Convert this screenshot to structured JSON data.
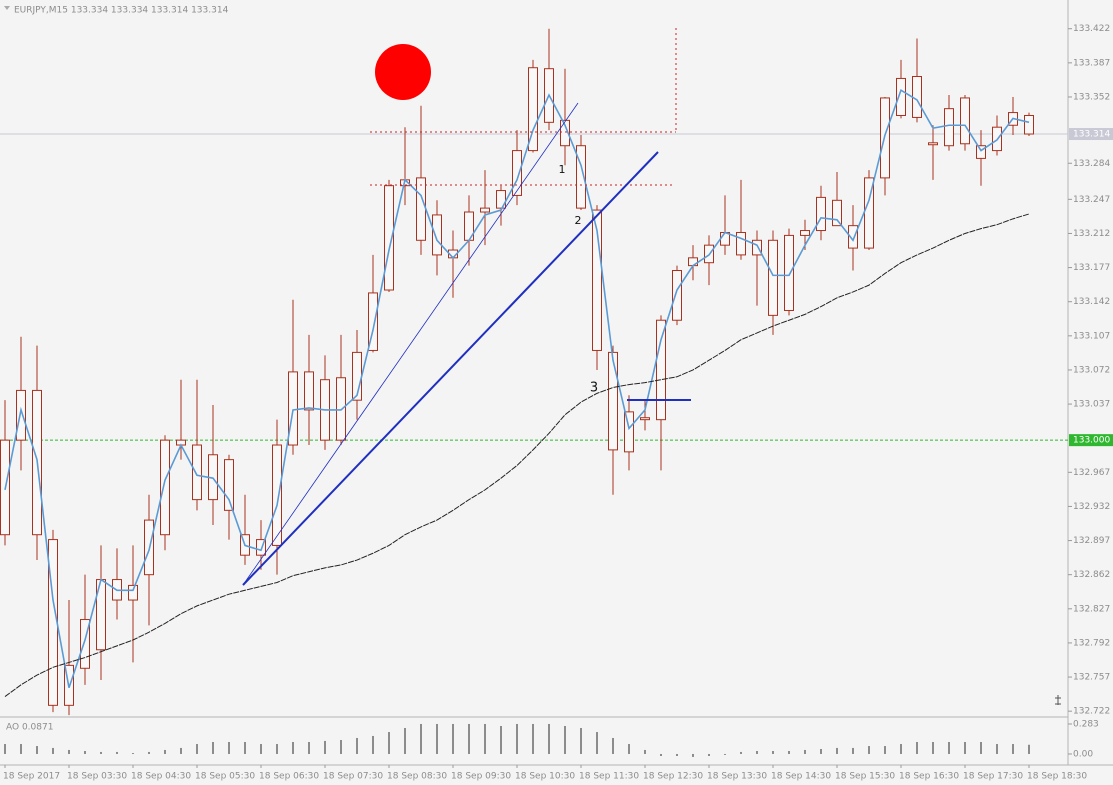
{
  "chart_data": [
    {
      "type": "candlestick",
      "title": "EURJPY,M15 133.334 133.334 133.314 133.314",
      "categories": [
        "18 Sep 2017",
        null,
        null,
        null,
        "18 Sep 03:30",
        null,
        null,
        null,
        "18 Sep 04:30",
        null,
        null,
        null,
        "18 Sep 05:30",
        null,
        null,
        null,
        "18 Sep 06:30",
        null,
        null,
        null,
        "18 Sep 07:30",
        null,
        null,
        null,
        "18 Sep 08:30",
        null,
        null,
        null,
        "18 Sep 09:30",
        null,
        null,
        null,
        "18 Sep 10:30",
        null,
        null,
        null,
        "18 Sep 11:30",
        null,
        null,
        null,
        "18 Sep 12:30",
        null,
        null,
        null,
        "18 Sep 13:30",
        null,
        null,
        null,
        "18 Sep 14:30",
        null,
        null,
        null,
        "18 Sep 15:30",
        null,
        null,
        null,
        "18 Sep 16:30",
        null,
        null,
        null,
        "18 Sep 17:30",
        null,
        null,
        null,
        "18 Sep 18:30"
      ],
      "open": [
        133.0,
        133.0,
        133.051,
        132.898,
        132.728,
        132.766,
        132.785,
        132.857,
        132.836,
        132.862,
        132.903,
        133.0,
        132.995,
        132.985,
        132.98,
        132.903,
        132.882,
        132.892,
        132.995,
        133.07,
        133.062,
        133.0,
        133.041,
        133.092,
        133.154,
        133.261,
        133.269,
        133.231,
        133.195,
        133.205,
        133.234,
        133.238,
        133.251,
        133.297,
        133.381,
        133.328,
        133.302,
        133.236,
        133.09,
        132.988,
        133.023,
        133.021,
        133.123,
        133.179,
        133.182,
        133.2,
        133.213,
        133.19,
        133.205,
        133.133,
        133.21,
        133.215,
        133.246,
        133.22,
        133.197,
        133.269,
        133.333,
        133.373,
        133.305,
        133.302,
        133.351,
        133.302,
        133.297,
        133.323,
        133.333
      ],
      "high": [
        133.041,
        133.106,
        133.097,
        132.908,
        132.836,
        132.862,
        132.892,
        132.889,
        132.892,
        132.944,
        133.005,
        133.062,
        133.062,
        133.036,
        132.985,
        132.944,
        132.918,
        133.021,
        133.144,
        133.108,
        133.087,
        133.108,
        133.113,
        133.19,
        133.267,
        133.321,
        133.343,
        133.246,
        133.215,
        133.251,
        133.277,
        133.261,
        133.318,
        133.39,
        133.422,
        133.381,
        133.313,
        133.241,
        133.097,
        133.046,
        133.041,
        133.128,
        133.179,
        133.2,
        133.21,
        133.251,
        133.267,
        133.215,
        133.215,
        133.217,
        133.226,
        133.261,
        133.275,
        133.241,
        133.277,
        133.352,
        133.39,
        133.412,
        133.323,
        133.354,
        133.354,
        133.318,
        133.333,
        133.352,
        133.336
      ],
      "low": [
        132.892,
        132.969,
        132.877,
        132.721,
        132.718,
        132.749,
        132.754,
        132.816,
        132.772,
        132.81,
        132.887,
        132.98,
        132.928,
        132.913,
        132.898,
        132.872,
        132.867,
        132.862,
        132.985,
        132.995,
        132.99,
        132.995,
        133.021,
        133.09,
        133.152,
        133.241,
        133.19,
        133.169,
        133.146,
        133.179,
        133.2,
        133.22,
        133.241,
        133.295,
        133.318,
        133.282,
        133.236,
        133.072,
        132.944,
        132.969,
        133.01,
        132.969,
        133.118,
        133.164,
        133.159,
        133.19,
        133.185,
        133.138,
        133.108,
        133.128,
        133.195,
        133.205,
        133.22,
        133.174,
        133.195,
        133.251,
        133.33,
        133.326,
        133.267,
        133.297,
        133.297,
        133.261,
        133.292,
        133.313,
        133.312
      ],
      "close": [
        132.903,
        133.051,
        132.903,
        132.728,
        132.769,
        132.816,
        132.857,
        132.836,
        132.851,
        132.918,
        133.0,
        132.995,
        132.939,
        132.939,
        132.928,
        132.882,
        132.898,
        132.995,
        133.07,
        133.031,
        133.0,
        133.064,
        133.09,
        133.151,
        133.261,
        133.267,
        133.205,
        133.19,
        133.187,
        133.234,
        133.238,
        133.256,
        133.297,
        133.382,
        133.326,
        133.302,
        133.238,
        133.092,
        132.99,
        133.029,
        133.021,
        133.123,
        133.174,
        133.187,
        133.2,
        133.213,
        133.19,
        133.205,
        133.128,
        133.21,
        133.215,
        133.249,
        133.22,
        133.197,
        133.269,
        133.351,
        133.371,
        133.331,
        133.303,
        133.34,
        133.304,
        133.289,
        133.321,
        133.336,
        133.314
      ],
      "color": "#a8321e",
      "overlays": [
        {
          "color": "#5b9bd5",
          "values": [
            132.949,
            133.031,
            132.98,
            132.836,
            132.746,
            132.795,
            132.857,
            132.846,
            132.846,
            132.887,
            132.959,
            132.995,
            132.964,
            132.961,
            132.939,
            132.892,
            132.887,
            132.933,
            133.031,
            133.033,
            133.031,
            133.031,
            133.046,
            133.113,
            133.195,
            133.267,
            133.251,
            133.205,
            133.187,
            133.205,
            133.231,
            133.236,
            133.267,
            133.318,
            133.354,
            133.323,
            133.282,
            133.215,
            133.082,
            133.012,
            133.031,
            133.103,
            133.154,
            133.179,
            133.19,
            133.213,
            133.207,
            133.2,
            133.169,
            133.169,
            133.2,
            133.228,
            133.226,
            133.205,
            133.246,
            133.313,
            133.359,
            133.349,
            133.32,
            133.323,
            133.323,
            133.297,
            133.308,
            133.33,
            133.326
          ]
        },
        {
          "color": "#222222",
          "dash": true,
          "values": [
            132.737,
            132.749,
            132.759,
            132.767,
            132.772,
            132.777,
            132.783,
            132.789,
            132.795,
            132.803,
            132.812,
            132.822,
            132.83,
            132.836,
            132.842,
            132.846,
            132.85,
            132.854,
            132.861,
            132.865,
            132.869,
            132.872,
            132.877,
            132.884,
            132.892,
            132.903,
            132.911,
            132.918,
            132.928,
            132.939,
            132.949,
            132.961,
            132.974,
            132.99,
            133.007,
            133.026,
            133.039,
            133.048,
            133.054,
            133.057,
            133.059,
            133.062,
            133.065,
            133.072,
            133.082,
            133.092,
            133.103,
            133.11,
            133.117,
            133.123,
            133.129,
            133.137,
            133.146,
            133.152,
            133.159,
            133.171,
            133.182,
            133.19,
            133.197,
            133.205,
            133.212,
            133.217,
            133.221,
            133.227,
            133.232
          ]
        }
      ],
      "hlines": [
        {
          "value": 133.314,
          "color": "#c9c9d6"
        },
        {
          "value": 133,
          "label": "133.000",
          "color": "#2fb82f"
        }
      ],
      "annotations": [
        "1",
        "2",
        "3"
      ],
      "ylim": [
        132.715,
        133.433
      ],
      "yticks": [
        133.422,
        133.387,
        133.352,
        133.284,
        133.247,
        133.212,
        133.177,
        133.142,
        133.107,
        133.072,
        133.037,
        132.967,
        132.932,
        132.897,
        132.862,
        132.827,
        132.792,
        132.757,
        132.722
      ],
      "grid": false
    },
    {
      "type": "bar",
      "title": "AO 0.0871",
      "values": [
        0.094,
        0.094,
        0.075,
        0.057,
        0.038,
        0.028,
        0.019,
        0.019,
        0.009,
        0.019,
        0.038,
        0.057,
        0.094,
        0.113,
        0.113,
        0.113,
        0.094,
        0.094,
        0.113,
        0.113,
        0.123,
        0.132,
        0.151,
        0.17,
        0.207,
        0.245,
        0.283,
        0.283,
        0.283,
        0.283,
        0.283,
        0.264,
        0.283,
        0.283,
        0.283,
        0.264,
        0.245,
        0.207,
        0.151,
        0.094,
        0.038,
        -0.019,
        -0.019,
        -0.028,
        -0.019,
        -0.009,
        0.019,
        0.028,
        0.028,
        0.028,
        0.038,
        0.047,
        0.057,
        0.057,
        0.075,
        0.075,
        0.094,
        0.113,
        0.113,
        0.113,
        0.113,
        0.113,
        0.094,
        0.094,
        0.0871
      ],
      "color": "#8c8c8c",
      "ylim": [
        -0.104,
        0.33
      ],
      "yticks": [
        0.283,
        {
          "value": 0,
          "label": "0.00"
        }
      ]
    }
  ]
}
